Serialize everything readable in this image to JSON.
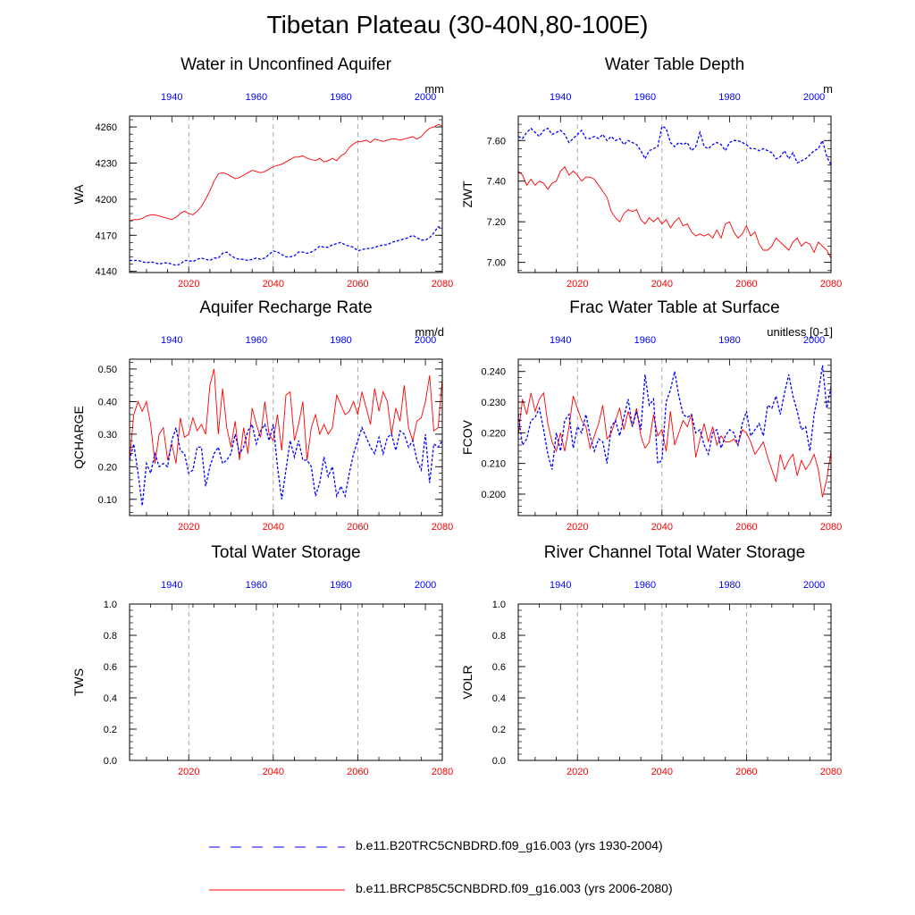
{
  "figure": {
    "title": "Tibetan Plateau (30-40N,80-100E)"
  },
  "colors": {
    "historical": "#0000ff",
    "future": "#ff0000",
    "axis": "#000000",
    "grid": "#999999"
  },
  "legend": {
    "entries": [
      {
        "label": "b.e11.B20TRC5CNBDRD.f09_g16.003 (yrs 1930-2004)",
        "color": "#0000ff",
        "style": "dashed"
      },
      {
        "label": "b.e11.BRCP85C5CNBDRD.f09_g16.003 (yrs 2006-2080)",
        "color": "#ff0000",
        "style": "solid"
      }
    ]
  },
  "chart_data": [
    {
      "id": "wa",
      "type": "line",
      "title": "Water in Unconfined Aquifer",
      "ylabel": "WA",
      "units": "mm",
      "ylim": [
        4139,
        4269
      ],
      "yticks": [
        4140,
        4170,
        4200,
        4230,
        4260
      ],
      "xlim_bottom": [
        2006,
        2080
      ],
      "xticks_bottom": [
        2020,
        2040,
        2060,
        2080
      ],
      "xticks_top": [
        1940,
        1960,
        1980,
        2000
      ],
      "grid_x": [
        2020,
        2040,
        2060
      ],
      "series": [
        {
          "color": "#ff0000",
          "style": "solid",
          "values": [
            4182,
            4183,
            4183,
            4184,
            4186,
            4187,
            4187,
            4186,
            4185,
            4184,
            4183,
            4185,
            4188,
            4190,
            4188,
            4187,
            4190,
            4194,
            4200,
            4207,
            4215,
            4221,
            4222,
            4221,
            4219,
            4217,
            4218,
            4220,
            4222,
            4224,
            4223,
            4222,
            4223,
            4225,
            4227,
            4228,
            4229,
            4231,
            4233,
            4235,
            4235,
            4236,
            4234,
            4233,
            4232,
            4234,
            4231,
            4232,
            4234,
            4232,
            4236,
            4238,
            4243,
            4246,
            4248,
            4248,
            4249,
            4247,
            4250,
            4249,
            4248,
            4249,
            4250,
            4250,
            4249,
            4250,
            4251,
            4252,
            4250,
            4252,
            4256,
            4259,
            4260,
            4262,
            4261
          ]
        },
        {
          "color": "#0000ff",
          "style": "dashed",
          "values": [
            4149,
            4149,
            4149,
            4148,
            4147,
            4148,
            4147,
            4146,
            4147,
            4147,
            4146,
            4145,
            4146,
            4149,
            4149,
            4148,
            4150,
            4151,
            4150,
            4149,
            4151,
            4151,
            4155,
            4156,
            4153,
            4151,
            4150,
            4150,
            4149,
            4150,
            4151,
            4150,
            4151,
            4154,
            4157,
            4156,
            4154,
            4152,
            4152,
            4153,
            4156,
            4156,
            4155,
            4156,
            4158,
            4161,
            4160,
            4160,
            4162,
            4163,
            4164,
            4162,
            4161,
            4160,
            4157,
            4158,
            4159,
            4159,
            4160,
            4161,
            4162,
            4162,
            4164,
            4165,
            4166,
            4167,
            4168,
            4170,
            4168,
            4166,
            4166,
            4168,
            4172,
            4177,
            4176
          ]
        }
      ]
    },
    {
      "id": "zwt",
      "type": "line",
      "title": "Water Table Depth",
      "ylabel": "ZWT",
      "units": "m",
      "ylim": [
        6.95,
        7.72
      ],
      "yticks": [
        7.0,
        7.2,
        7.4,
        7.6
      ],
      "yticklabels": [
        "7.00",
        "7.20",
        "7.40",
        "7.60"
      ],
      "xlim_bottom": [
        2006,
        2080
      ],
      "xticks_bottom": [
        2020,
        2040,
        2060,
        2080
      ],
      "xticks_top": [
        1940,
        1960,
        1980,
        2000
      ],
      "grid_x": [
        2020,
        2040,
        2060
      ],
      "series": [
        {
          "color": "#ff0000",
          "style": "solid",
          "values": [
            7.45,
            7.43,
            7.38,
            7.41,
            7.38,
            7.4,
            7.39,
            7.36,
            7.39,
            7.4,
            7.45,
            7.47,
            7.43,
            7.45,
            7.43,
            7.4,
            7.42,
            7.42,
            7.41,
            7.38,
            7.35,
            7.32,
            7.25,
            7.22,
            7.2,
            7.24,
            7.26,
            7.25,
            7.26,
            7.21,
            7.19,
            7.22,
            7.2,
            7.22,
            7.19,
            7.21,
            7.17,
            7.2,
            7.22,
            7.18,
            7.19,
            7.15,
            7.13,
            7.14,
            7.13,
            7.14,
            7.12,
            7.16,
            7.12,
            7.19,
            7.2,
            7.15,
            7.12,
            7.14,
            7.18,
            7.13,
            7.15,
            7.09,
            7.06,
            7.06,
            7.08,
            7.12,
            7.1,
            7.08,
            7.06,
            7.1,
            7.12,
            7.08,
            7.1,
            7.09,
            7.05,
            7.1,
            7.08,
            7.06,
            7.02
          ]
        },
        {
          "color": "#0000ff",
          "style": "dashed",
          "values": [
            7.62,
            7.61,
            7.64,
            7.66,
            7.64,
            7.62,
            7.65,
            7.66,
            7.63,
            7.64,
            7.65,
            7.63,
            7.59,
            7.61,
            7.63,
            7.65,
            7.61,
            7.61,
            7.62,
            7.61,
            7.63,
            7.6,
            7.62,
            7.6,
            7.61,
            7.58,
            7.6,
            7.59,
            7.58,
            7.55,
            7.51,
            7.55,
            7.56,
            7.57,
            7.67,
            7.66,
            7.59,
            7.57,
            7.59,
            7.58,
            7.59,
            7.55,
            7.57,
            7.64,
            7.57,
            7.56,
            7.58,
            7.59,
            7.58,
            7.55,
            7.59,
            7.6,
            7.6,
            7.59,
            7.58,
            7.56,
            7.56,
            7.55,
            7.56,
            7.55,
            7.54,
            7.51,
            7.52,
            7.55,
            7.51,
            7.54,
            7.49,
            7.5,
            7.51,
            7.53,
            7.55,
            7.56,
            7.6,
            7.52,
            7.48
          ]
        }
      ]
    },
    {
      "id": "qcharge",
      "type": "line",
      "title": "Aquifer Recharge Rate",
      "ylabel": "QCHARGE",
      "units": "mm/d",
      "ylim": [
        0.05,
        0.53
      ],
      "yticks": [
        0.1,
        0.2,
        0.3,
        0.4,
        0.5
      ],
      "yticklabels": [
        "0.10",
        "0.20",
        "0.30",
        "0.40",
        "0.50"
      ],
      "xlim_bottom": [
        2006,
        2080
      ],
      "xticks_bottom": [
        2020,
        2040,
        2060,
        2080
      ],
      "xticks_top": [
        1940,
        1960,
        1980,
        2000
      ],
      "grid_x": [
        2020,
        2040,
        2060
      ],
      "series": [
        {
          "color": "#ff0000",
          "style": "solid",
          "values": [
            0.22,
            0.36,
            0.4,
            0.37,
            0.4,
            0.33,
            0.21,
            0.3,
            0.32,
            0.22,
            0.27,
            0.21,
            0.35,
            0.29,
            0.3,
            0.35,
            0.31,
            0.33,
            0.3,
            0.45,
            0.5,
            0.3,
            0.44,
            0.32,
            0.26,
            0.34,
            0.22,
            0.32,
            0.24,
            0.38,
            0.33,
            0.29,
            0.4,
            0.3,
            0.28,
            0.36,
            0.25,
            0.42,
            0.43,
            0.28,
            0.33,
            0.4,
            0.22,
            0.32,
            0.36,
            0.3,
            0.33,
            0.3,
            0.32,
            0.42,
            0.39,
            0.36,
            0.37,
            0.4,
            0.36,
            0.43,
            0.38,
            0.33,
            0.44,
            0.37,
            0.43,
            0.4,
            0.3,
            0.38,
            0.34,
            0.45,
            0.32,
            0.28,
            0.34,
            0.35,
            0.4,
            0.48,
            0.31,
            0.32,
            0.47
          ]
        },
        {
          "color": "#0000ff",
          "style": "dashed",
          "values": [
            0.22,
            0.27,
            0.18,
            0.08,
            0.21,
            0.18,
            0.24,
            0.2,
            0.21,
            0.2,
            0.28,
            0.32,
            0.25,
            0.24,
            0.18,
            0.19,
            0.26,
            0.26,
            0.14,
            0.2,
            0.24,
            0.26,
            0.21,
            0.22,
            0.24,
            0.3,
            0.24,
            0.26,
            0.31,
            0.33,
            0.27,
            0.31,
            0.33,
            0.28,
            0.33,
            0.2,
            0.1,
            0.19,
            0.28,
            0.23,
            0.28,
            0.22,
            0.22,
            0.2,
            0.11,
            0.15,
            0.23,
            0.17,
            0.2,
            0.11,
            0.14,
            0.11,
            0.18,
            0.24,
            0.28,
            0.32,
            0.29,
            0.26,
            0.24,
            0.29,
            0.24,
            0.29,
            0.3,
            0.25,
            0.31,
            0.3,
            0.26,
            0.28,
            0.22,
            0.19,
            0.3,
            0.15,
            0.27,
            0.26,
            0.28
          ]
        }
      ]
    },
    {
      "id": "fcov",
      "type": "line",
      "title": "Frac Water Table at Surface",
      "ylabel": "FCOV",
      "units": "unitless [0-1]",
      "ylim": [
        0.193,
        0.244
      ],
      "yticks": [
        0.2,
        0.21,
        0.22,
        0.23,
        0.24
      ],
      "yticklabels": [
        "0.200",
        "0.210",
        "0.220",
        "0.230",
        "0.240"
      ],
      "xlim_bottom": [
        2006,
        2080
      ],
      "xticks_bottom": [
        2020,
        2040,
        2060,
        2080
      ],
      "xticks_top": [
        1940,
        1960,
        1980,
        2000
      ],
      "grid_x": [
        2020,
        2040,
        2060
      ],
      "series": [
        {
          "color": "#ff0000",
          "style": "solid",
          "values": [
            0.219,
            0.231,
            0.226,
            0.233,
            0.227,
            0.231,
            0.233,
            0.223,
            0.217,
            0.214,
            0.22,
            0.214,
            0.222,
            0.232,
            0.228,
            0.224,
            0.222,
            0.215,
            0.219,
            0.223,
            0.229,
            0.218,
            0.22,
            0.224,
            0.228,
            0.221,
            0.227,
            0.222,
            0.228,
            0.219,
            0.215,
            0.217,
            0.226,
            0.219,
            0.221,
            0.214,
            0.227,
            0.216,
            0.22,
            0.224,
            0.222,
            0.226,
            0.212,
            0.218,
            0.223,
            0.217,
            0.222,
            0.216,
            0.219,
            0.217,
            0.217,
            0.218,
            0.216,
            0.221,
            0.22,
            0.217,
            0.213,
            0.215,
            0.217,
            0.212,
            0.208,
            0.204,
            0.213,
            0.208,
            0.211,
            0.213,
            0.206,
            0.211,
            0.208,
            0.21,
            0.213,
            0.208,
            0.199,
            0.205,
            0.214
          ]
        },
        {
          "color": "#0000ff",
          "style": "dashed",
          "values": [
            0.226,
            0.216,
            0.218,
            0.224,
            0.225,
            0.228,
            0.221,
            0.213,
            0.208,
            0.22,
            0.214,
            0.224,
            0.226,
            0.215,
            0.222,
            0.22,
            0.226,
            0.219,
            0.214,
            0.218,
            0.217,
            0.21,
            0.222,
            0.224,
            0.219,
            0.225,
            0.231,
            0.222,
            0.227,
            0.221,
            0.239,
            0.229,
            0.231,
            0.21,
            0.211,
            0.23,
            0.234,
            0.24,
            0.232,
            0.226,
            0.225,
            0.226,
            0.22,
            0.221,
            0.216,
            0.213,
            0.22,
            0.221,
            0.215,
            0.219,
            0.221,
            0.22,
            0.216,
            0.223,
            0.227,
            0.219,
            0.221,
            0.223,
            0.219,
            0.229,
            0.228,
            0.232,
            0.226,
            0.233,
            0.239,
            0.232,
            0.227,
            0.221,
            0.222,
            0.214,
            0.226,
            0.233,
            0.242,
            0.228,
            0.235
          ]
        }
      ]
    },
    {
      "id": "tws",
      "type": "line",
      "title": "Total Water Storage",
      "ylabel": "TWS",
      "units": "",
      "ylim": [
        0,
        1
      ],
      "yticks": [
        0.0,
        0.2,
        0.4,
        0.6,
        0.8,
        1.0
      ],
      "yticklabels": [
        "0.0",
        "0.2",
        "0.4",
        "0.6",
        "0.8",
        "1.0"
      ],
      "xlim_bottom": [
        2006,
        2080
      ],
      "xticks_bottom": [
        2020,
        2040,
        2060,
        2080
      ],
      "xticks_top": [
        1940,
        1960,
        1980,
        2000
      ],
      "grid_x": [
        2020,
        2040,
        2060
      ],
      "series": []
    },
    {
      "id": "volr",
      "type": "line",
      "title": "River Channel Total Water Storage",
      "ylabel": "VOLR",
      "units": "",
      "ylim": [
        0,
        1
      ],
      "yticks": [
        0.0,
        0.2,
        0.4,
        0.6,
        0.8,
        1.0
      ],
      "yticklabels": [
        "0.0",
        "0.2",
        "0.4",
        "0.6",
        "0.8",
        "1.0"
      ],
      "xlim_bottom": [
        2006,
        2080
      ],
      "xticks_bottom": [
        2020,
        2040,
        2060,
        2080
      ],
      "xticks_top": [
        1940,
        1960,
        1980,
        2000
      ],
      "grid_x": [
        2020,
        2040,
        2060
      ],
      "series": []
    }
  ]
}
